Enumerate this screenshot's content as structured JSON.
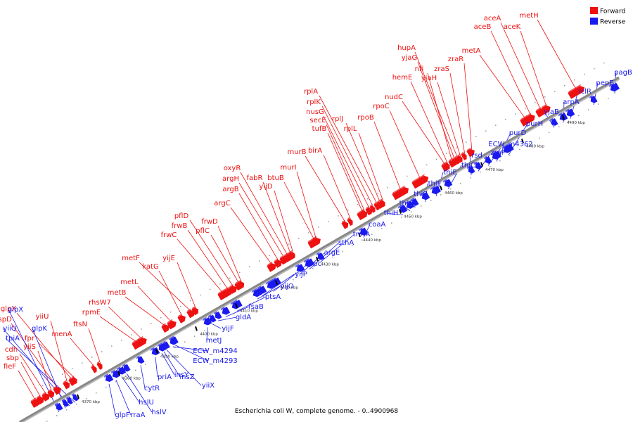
{
  "caption": "Escherichia coli W, complete genome. - 0..4900968",
  "legend": [
    {
      "label": "Forward",
      "color": "#ee1111"
    },
    {
      "label": "Reverse",
      "color": "#1a1aee"
    }
  ],
  "colors": {
    "forward": "#ee1111",
    "reverse": "#1a1aee",
    "backbone": "#888888"
  },
  "ticks": [
    "4370 kbp",
    "4380 kbp",
    "4390 kbp",
    "4400 kbp",
    "4410 kbp",
    "4420 kbp",
    "4430 kbp",
    "4440 kbp",
    "4450 kbp",
    "4460 kbp",
    "4470 kbp",
    "4480 kbp",
    "4490 kbp"
  ],
  "forward_genes": [
    "fieF",
    "sbp",
    "cdh",
    "yiiS",
    "uspD",
    "yiiU",
    "glpX",
    "fpr",
    "menA",
    "ftsN",
    "rpmE",
    "rhsW7",
    "metB",
    "metL",
    "katG",
    "metF",
    "yijE",
    "frwC",
    "frwB",
    "pflD",
    "pflC",
    "frwD",
    "argC",
    "argB",
    "argH",
    "oxyR",
    "fabR",
    "yijD",
    "btuB",
    "murI",
    "murB",
    "birA",
    "tufB",
    "secE",
    "nusG",
    "rplK",
    "rplA",
    "rplJ",
    "rplL",
    "rpoB",
    "rpoC",
    "nudC",
    "hemE",
    "nfi",
    "yjaG",
    "hupA",
    "yjaH",
    "zraS",
    "zraR",
    "metA",
    "aceB",
    "aceA",
    "aceK",
    "metH"
  ],
  "reverse_genes": [
    "glpX",
    "glpK",
    "yiiQ",
    "tpiA",
    "glpF",
    "rraA",
    "hslU",
    "hslV",
    "cytR",
    "priA",
    "insY",
    "insZ",
    "yiiX",
    "ECW_m4294",
    "ECW_m4293",
    "metJ",
    "yijF",
    "gldA",
    "fsaB",
    "ptsA",
    "yijO",
    "yijP",
    "ppc",
    "argE",
    "sthA",
    "trmA",
    "coaA",
    "thiH",
    "thiG",
    "thiS",
    "thiF",
    "thiE",
    "thiC",
    "rsd",
    "zraP",
    "ECW_m4362",
    "purD",
    "purH",
    "yjaB",
    "arpA",
    "iclR",
    "pepE",
    "pagB"
  ]
}
